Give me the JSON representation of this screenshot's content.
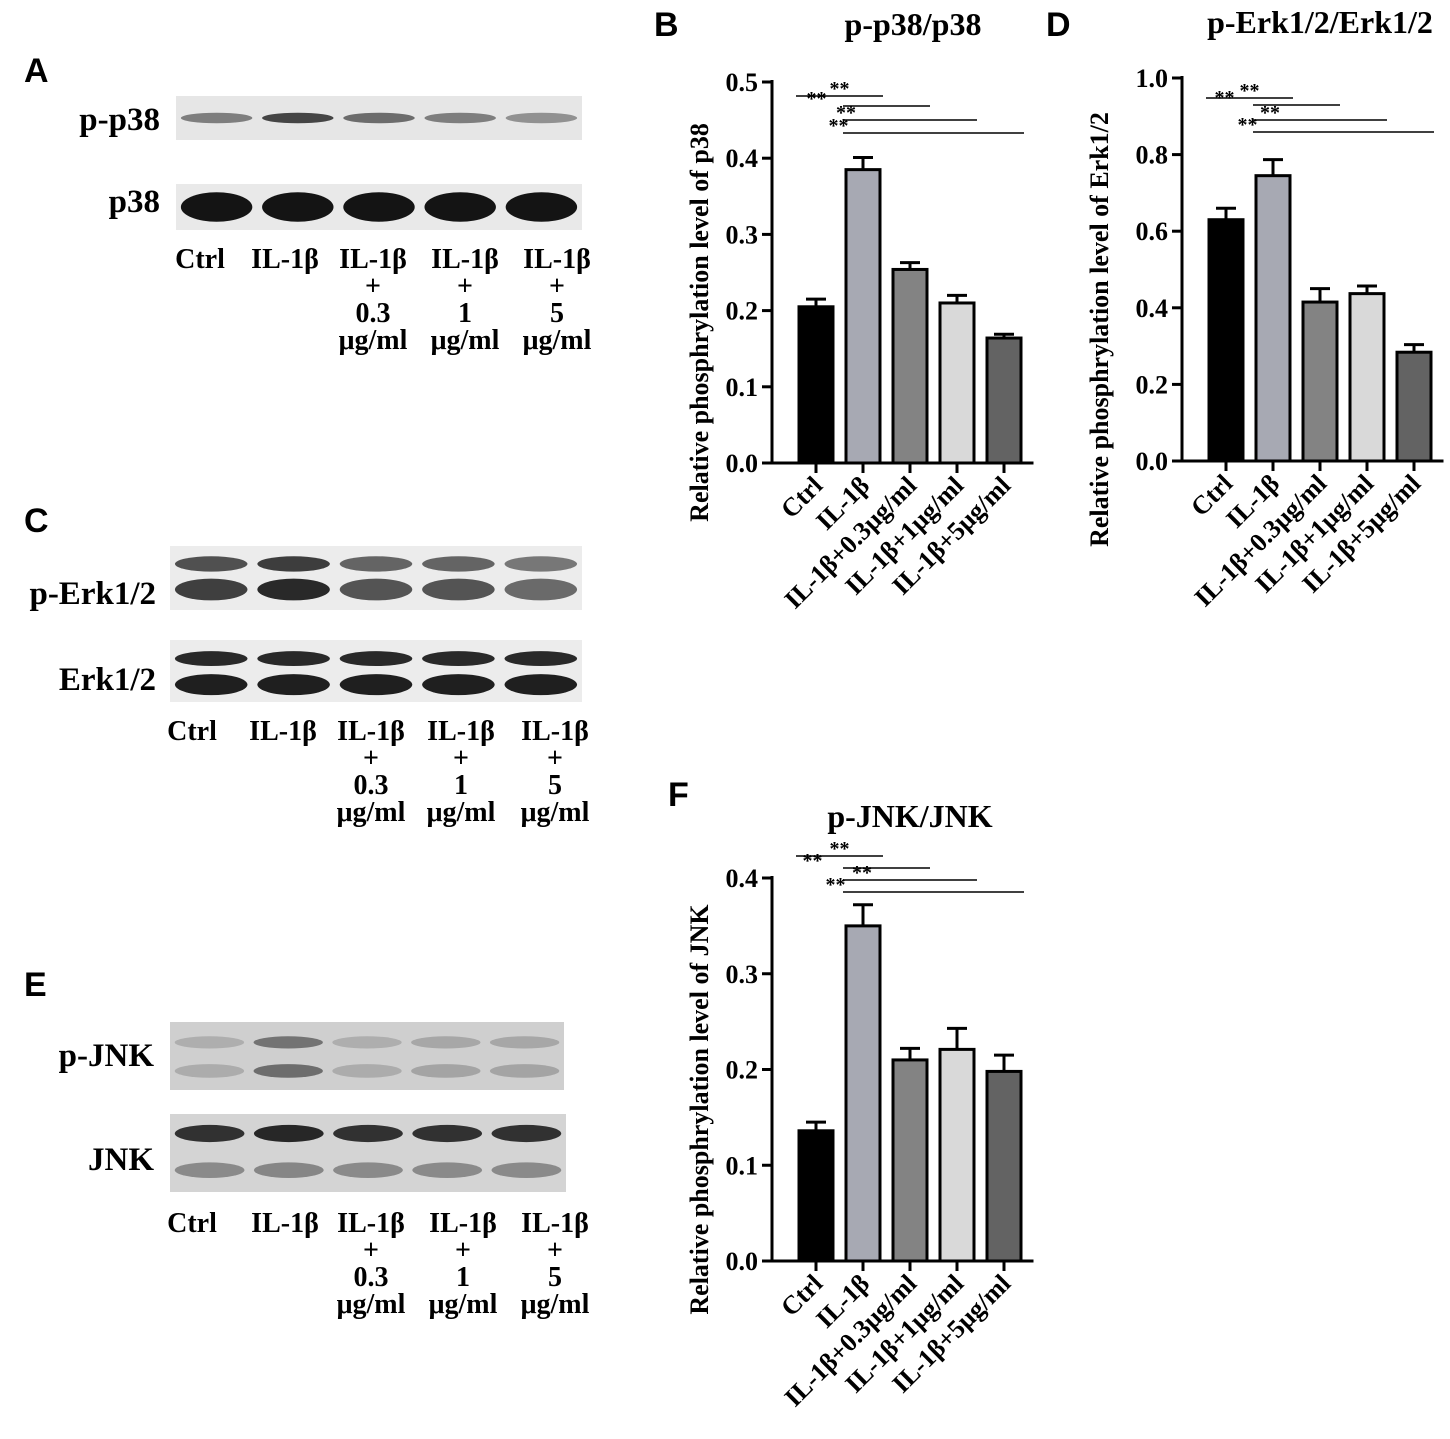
{
  "panels": {
    "A": "A",
    "B": "B",
    "C": "C",
    "D": "D",
    "E": "E",
    "F": "F"
  },
  "lane_labels": [
    "Ctrl",
    "IL-1β",
    "IL-1β\n+\n0.3\nμg/ml",
    "IL-1β\n+\n1\nμg/ml",
    "IL-1β\n+\n5\nμg/ml"
  ],
  "blot_A": {
    "rows": [
      {
        "label": "p-p38",
        "bands": [
          0.55,
          0.85,
          0.65,
          0.55,
          0.45
        ]
      },
      {
        "label": "p38",
        "bands": [
          1,
          1,
          1,
          1,
          1
        ]
      }
    ]
  },
  "blot_C": {
    "rows": [
      {
        "label": "p-Erk1/2",
        "bands": [
          0.8,
          0.9,
          0.7,
          0.7,
          0.6
        ]
      },
      {
        "label": "Erk1/2",
        "bands": [
          0.95,
          0.95,
          0.95,
          0.95,
          0.95
        ]
      }
    ]
  },
  "blot_E": {
    "rows": [
      {
        "label": "p-JNK",
        "bands": [
          0.25,
          0.7,
          0.25,
          0.3,
          0.3
        ]
      },
      {
        "label": "JNK",
        "bands": [
          0.85,
          0.9,
          0.85,
          0.85,
          0.85
        ]
      }
    ]
  },
  "colors": {
    "bar_fills": [
      "#000000",
      "#a7a9b3",
      "#838383",
      "#d9d9d9",
      "#636363"
    ]
  },
  "chart_data": [
    {
      "id": "B",
      "type": "bar",
      "title": "p-p38/p38",
      "ylabel": "Relative phosphrylation level of p38",
      "xlabel": "",
      "categories": [
        "Ctrl",
        "IL-1β",
        "IL-1β+0.3μg/ml",
        "IL-1β+1μg/ml",
        "IL-1β+5μg/ml"
      ],
      "values": [
        0.205,
        0.385,
        0.254,
        0.21,
        0.164
      ],
      "errors": [
        0.01,
        0.016,
        0.009,
        0.01,
        0.005
      ],
      "ylim": [
        0,
        0.5
      ],
      "yticks": [
        "0.0",
        "0.1",
        "0.2",
        "0.3",
        "0.4",
        "0.5"
      ],
      "significance": [
        {
          "from": 0,
          "to": 1,
          "label": "**"
        },
        {
          "from": 1,
          "to": 2,
          "label": "**"
        },
        {
          "from": 1,
          "to": 3,
          "label": "**"
        },
        {
          "from": 1,
          "to": 4,
          "label": "**"
        }
      ],
      "grid": false
    },
    {
      "id": "D",
      "type": "bar",
      "title": "p-Erk1/2/Erk1/2",
      "ylabel": "Relative phosphrylation level of Erk1/2",
      "xlabel": "",
      "categories": [
        "Ctrl",
        "IL-1β",
        "IL-1β+0.3μg/ml",
        "IL-1β+1μg/ml",
        "IL-1β+5μg/ml"
      ],
      "values": [
        0.63,
        0.745,
        0.415,
        0.437,
        0.284
      ],
      "errors": [
        0.03,
        0.042,
        0.035,
        0.02,
        0.02
      ],
      "ylim": [
        0,
        1.0
      ],
      "yticks": [
        "0.0",
        "0.2",
        "0.4",
        "0.6",
        "0.8",
        "1.0"
      ],
      "significance": [
        {
          "from": 0,
          "to": 1,
          "label": "**"
        },
        {
          "from": 1,
          "to": 2,
          "label": "**"
        },
        {
          "from": 1,
          "to": 3,
          "label": "**"
        },
        {
          "from": 1,
          "to": 4,
          "label": "**"
        }
      ],
      "grid": false
    },
    {
      "id": "F",
      "type": "bar",
      "title": "p-JNK/JNK",
      "ylabel": "Relative phosphrylation level of JNK",
      "xlabel": "",
      "categories": [
        "Ctrl",
        "IL-1β",
        "IL-1β+0.3μg/ml",
        "IL-1β+1μg/ml",
        "IL-1β+5μg/ml"
      ],
      "values": [
        0.136,
        0.35,
        0.21,
        0.221,
        0.198
      ],
      "errors": [
        0.009,
        0.022,
        0.012,
        0.022,
        0.017
      ],
      "ylim": [
        0,
        0.4
      ],
      "yticks": [
        "0.0",
        "0.1",
        "0.2",
        "0.3",
        "0.4"
      ],
      "significance": [
        {
          "from": 0,
          "to": 1,
          "label": "**"
        },
        {
          "from": 1,
          "to": 2,
          "label": "**"
        },
        {
          "from": 1,
          "to": 3,
          "label": "**"
        },
        {
          "from": 1,
          "to": 4,
          "label": "**"
        }
      ],
      "grid": false
    }
  ]
}
